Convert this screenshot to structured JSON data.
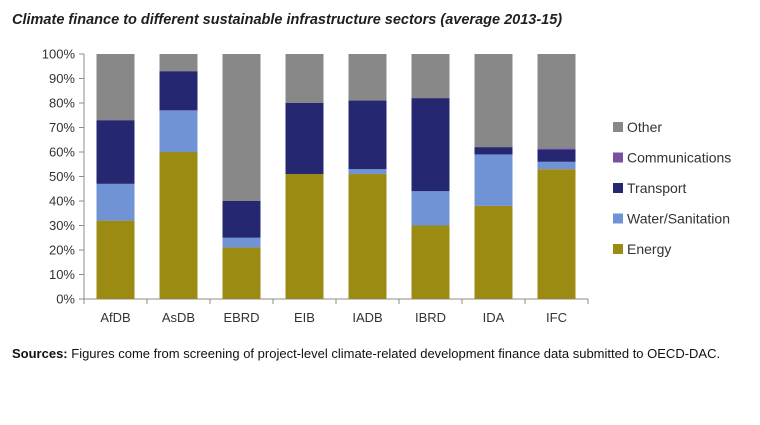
{
  "chart_data": {
    "type": "bar",
    "stacked": true,
    "title": "Climate finance to different sustainable infrastructure sectors (average 2013-15)",
    "categories": [
      "AfDB",
      "AsDB",
      "EBRD",
      "EIB",
      "IADB",
      "IBRD",
      "IDA",
      "IFC"
    ],
    "series": [
      {
        "name": "Energy",
        "color": "#9c8b12",
        "values": [
          32,
          60,
          21,
          51,
          51,
          30,
          38,
          53
        ]
      },
      {
        "name": "Water/Sanitation",
        "color": "#7093d5",
        "values": [
          15,
          17,
          4,
          0,
          2,
          14,
          21,
          3
        ]
      },
      {
        "name": "Transport",
        "color": "#252870",
        "values": [
          26,
          16,
          15,
          29,
          28,
          38,
          3,
          5
        ]
      },
      {
        "name": "Communications",
        "color": "#7b4fa0",
        "values": [
          0,
          0,
          0,
          0,
          0,
          0,
          0,
          0.5
        ]
      },
      {
        "name": "Other",
        "color": "#888888",
        "values": [
          27,
          7,
          60,
          20,
          19,
          18,
          38,
          38.5
        ]
      }
    ],
    "yticks": [
      "0%",
      "10%",
      "20%",
      "30%",
      "40%",
      "50%",
      "60%",
      "70%",
      "80%",
      "90%",
      "100%"
    ],
    "ylim": [
      0,
      100
    ],
    "grid": false,
    "legend_position": "right"
  },
  "sources": {
    "label": "Sources:",
    "text": " Figures come from screening of project-level climate-related development finance data submitted to OECD-DAC."
  }
}
